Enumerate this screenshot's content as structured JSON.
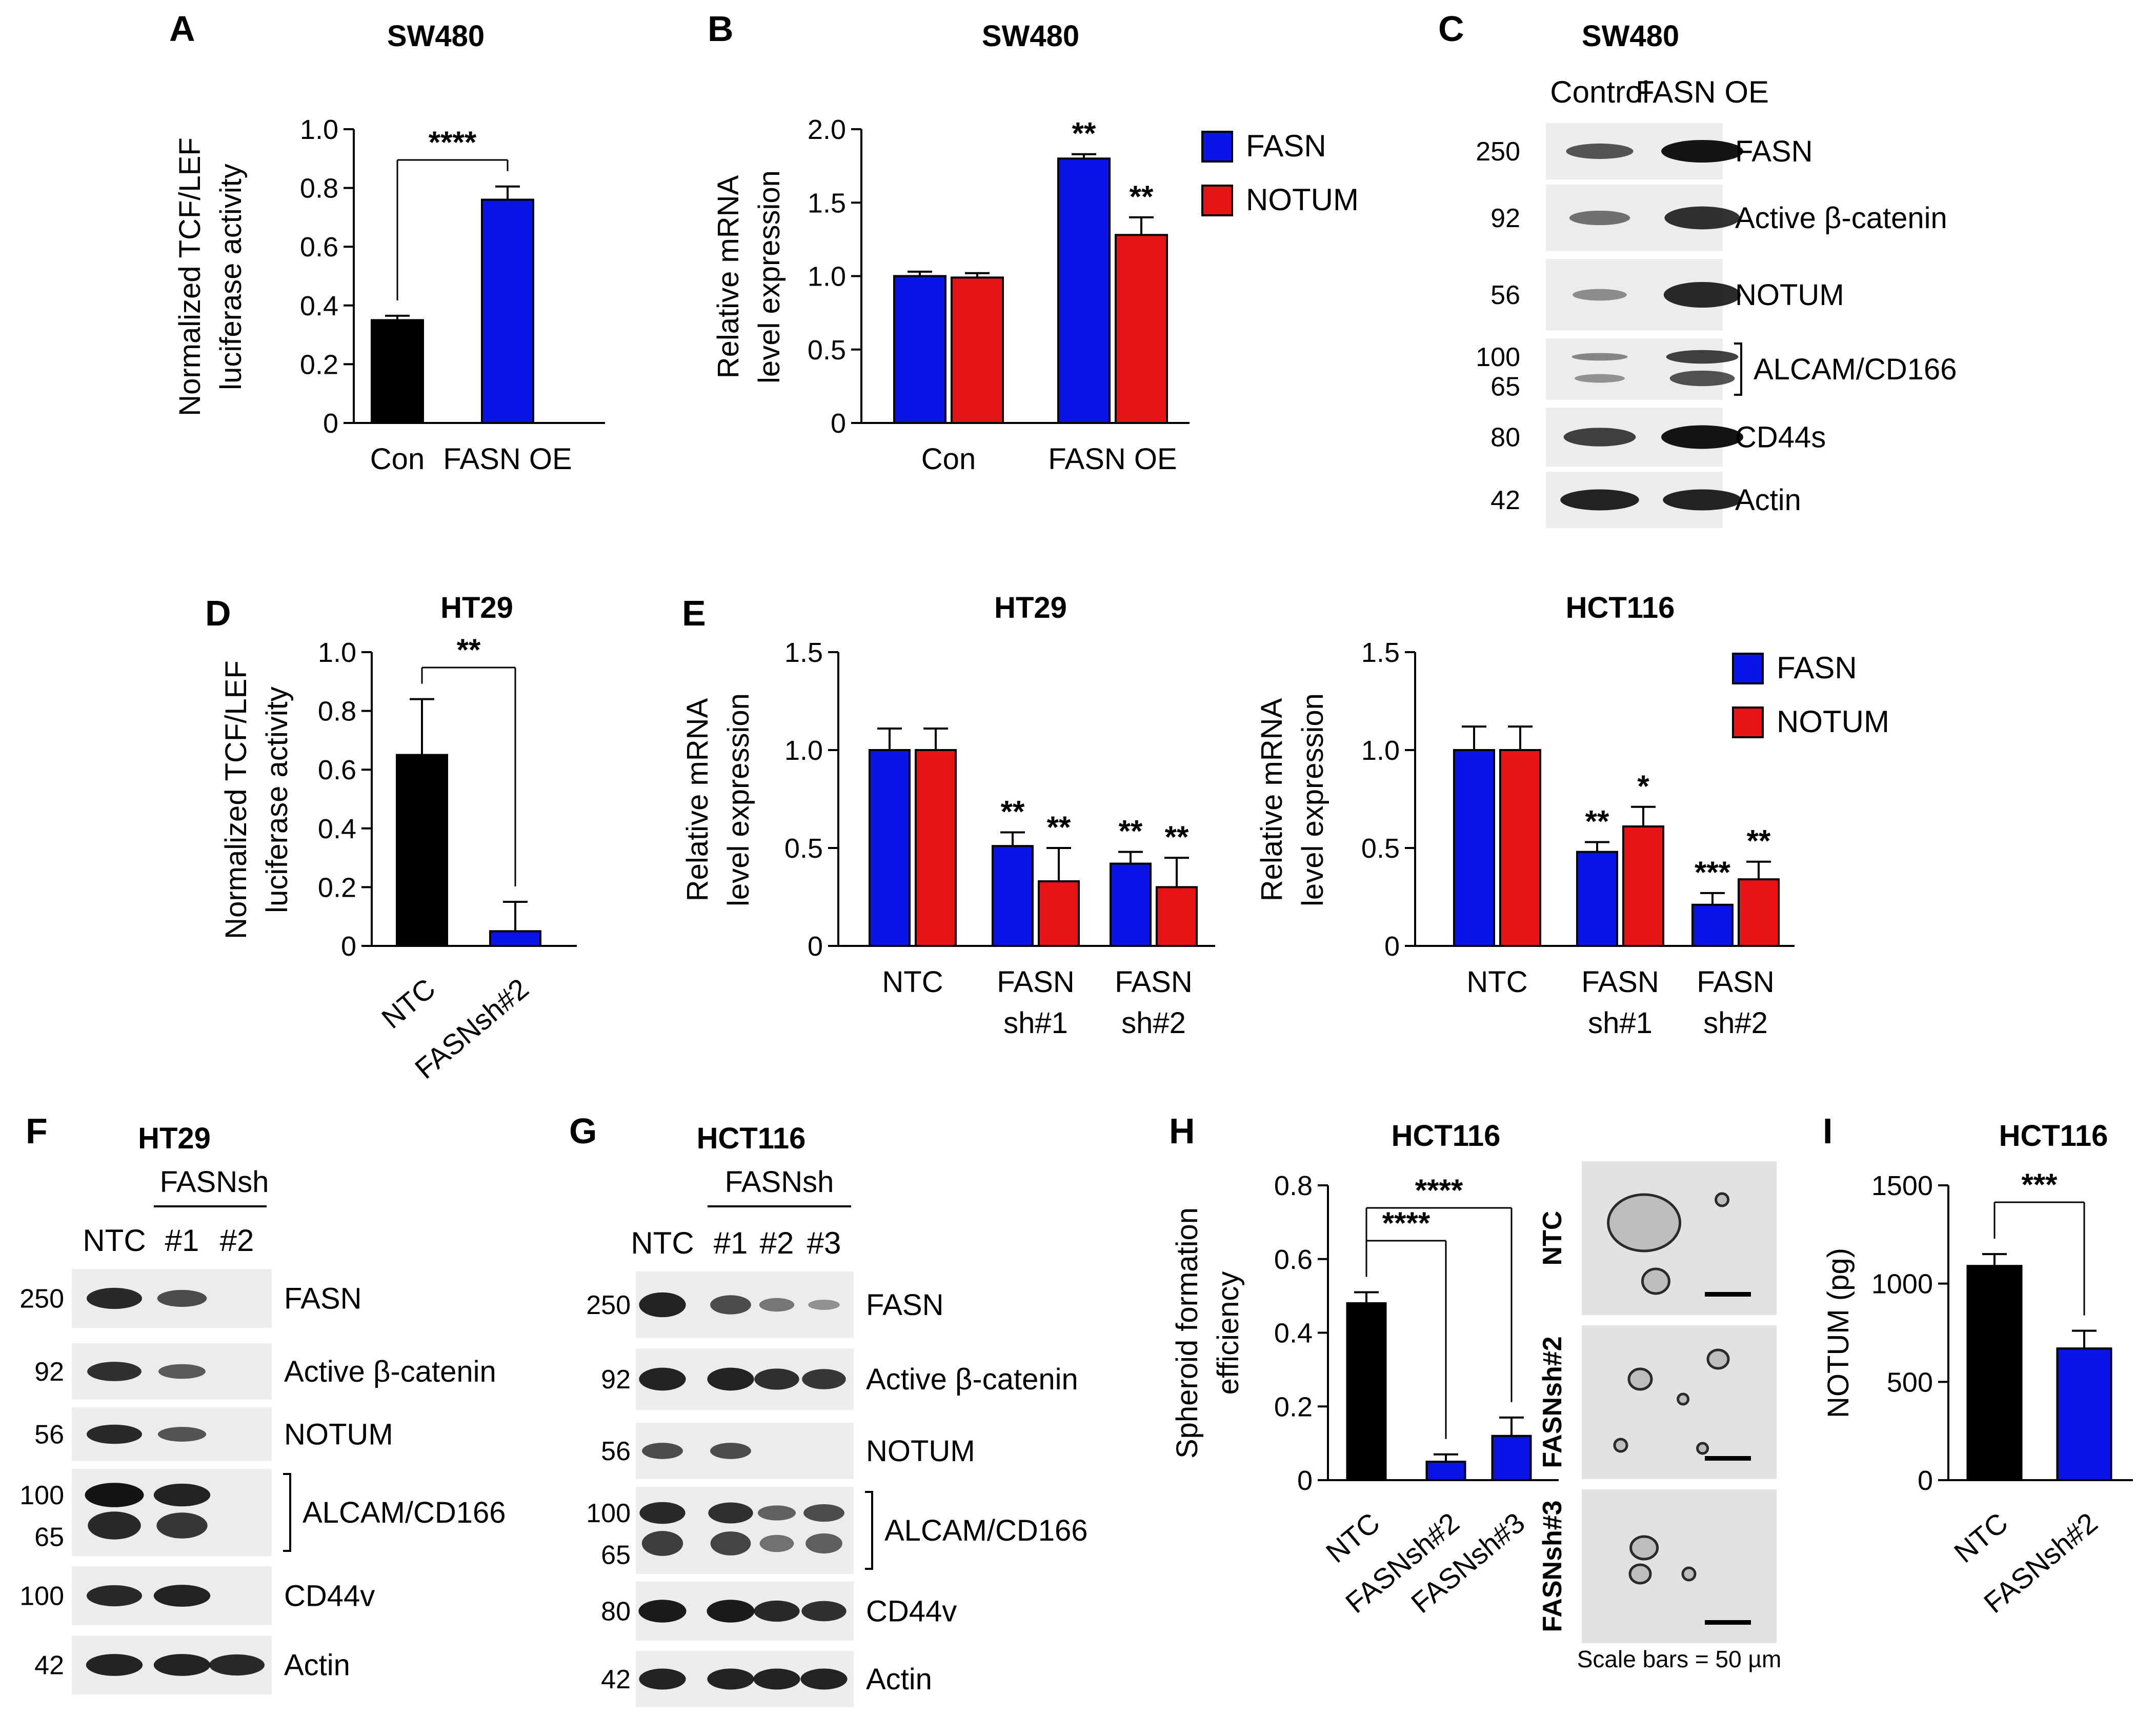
{
  "figure": {
    "colors": {
      "black": "#000000",
      "blue": "#0a14e6",
      "red": "#e61414",
      "band": "#141414",
      "blot_bg": "#ececec",
      "micro_bg": "#e2e2e2"
    },
    "legend": {
      "fasn": "FASN",
      "notum": "NOTUM"
    }
  },
  "chart_data": [
    {
      "panel": "A",
      "type": "bar",
      "title": "SW480",
      "ylabel": [
        "Normalized TCF/LEF",
        "luciferase activity"
      ],
      "ylim": [
        0,
        1.0
      ],
      "yticks": [
        "0",
        "0.2",
        "0.4",
        "0.6",
        "0.8",
        "1.0"
      ],
      "categories": [
        "Con",
        "FASN OE"
      ],
      "series": [
        {
          "name": "TCF/LEF",
          "values": [
            0.35,
            0.76
          ],
          "errors": [
            0.015,
            0.045
          ],
          "colors": [
            "#000000",
            "#0a14e6"
          ]
        }
      ],
      "significance": [
        {
          "label": "****",
          "from": 0,
          "to": 1
        }
      ]
    },
    {
      "panel": "B",
      "type": "bar",
      "title": "SW480",
      "ylabel": [
        "Relative mRNA",
        "level expression"
      ],
      "ylim": [
        0,
        2.0
      ],
      "yticks": [
        "0",
        "0.5",
        "1.0",
        "1.5",
        "2.0"
      ],
      "categories": [
        "Con",
        "FASN OE"
      ],
      "series": [
        {
          "name": "FASN",
          "values": [
            1.0,
            1.8
          ],
          "errors": [
            0.03,
            0.03
          ],
          "stars": [
            "",
            "**"
          ]
        },
        {
          "name": "NOTUM",
          "values": [
            0.99,
            1.28
          ],
          "errors": [
            0.03,
            0.12
          ],
          "stars": [
            "",
            "**"
          ]
        }
      ],
      "legend": [
        "FASN",
        "NOTUM"
      ]
    },
    {
      "panel": "D",
      "type": "bar",
      "title": "HT29",
      "ylabel": [
        "Normalized TCF/LEF",
        "luciferase activity"
      ],
      "ylim": [
        0,
        1.0
      ],
      "yticks": [
        "0",
        "0.2",
        "0.4",
        "0.6",
        "0.8",
        "1.0"
      ],
      "categories": [
        "NTC",
        "FASNsh#2"
      ],
      "series": [
        {
          "name": "TCF/LEF",
          "values": [
            0.65,
            0.05
          ],
          "errors": [
            0.19,
            0.1
          ],
          "colors": [
            "#000000",
            "#0a14e6"
          ]
        }
      ],
      "significance": [
        {
          "label": "**",
          "from": 0,
          "to": 1
        }
      ]
    },
    {
      "panel": "E",
      "type": "bar",
      "title": "HT29",
      "ylabel": [
        "Relative mRNA",
        "level expression"
      ],
      "ylim": [
        0,
        1.5
      ],
      "yticks": [
        "0",
        "0.5",
        "1.0",
        "1.5"
      ],
      "categories": [
        [
          "NTC"
        ],
        [
          "FASN",
          "sh#1"
        ],
        [
          "FASN",
          "sh#2"
        ]
      ],
      "series": [
        {
          "name": "FASN",
          "values": [
            1.0,
            0.51,
            0.42
          ],
          "errors": [
            0.11,
            0.07,
            0.06
          ],
          "stars": [
            "",
            "**",
            "**"
          ]
        },
        {
          "name": "NOTUM",
          "values": [
            1.0,
            0.33,
            0.3
          ],
          "errors": [
            0.11,
            0.17,
            0.15
          ],
          "stars": [
            "",
            "**",
            "**"
          ]
        }
      ]
    },
    {
      "panel": "E2",
      "type": "bar",
      "title": "HCT116",
      "ylabel": [
        "Relative mRNA",
        "level expression"
      ],
      "ylim": [
        0,
        1.5
      ],
      "yticks": [
        "0",
        "0.5",
        "1.0",
        "1.5"
      ],
      "categories": [
        [
          "NTC"
        ],
        [
          "FASN",
          "sh#1"
        ],
        [
          "FASN",
          "sh#2"
        ]
      ],
      "series": [
        {
          "name": "FASN",
          "values": [
            1.0,
            0.48,
            0.21
          ],
          "errors": [
            0.12,
            0.05,
            0.06
          ],
          "stars": [
            "",
            "**",
            "***"
          ]
        },
        {
          "name": "NOTUM",
          "values": [
            1.0,
            0.61,
            0.34
          ],
          "errors": [
            0.12,
            0.1,
            0.09
          ],
          "stars": [
            "",
            "*",
            "**"
          ]
        }
      ],
      "legend": [
        "FASN",
        "NOTUM"
      ]
    },
    {
      "panel": "H",
      "type": "bar",
      "title": "HCT116",
      "ylabel": [
        "Spheroid formation",
        "efficiency"
      ],
      "ylim": [
        0,
        0.8
      ],
      "yticks": [
        "0",
        "0.2",
        "0.4",
        "0.6",
        "0.8"
      ],
      "categories": [
        "NTC",
        "FASNsh#2",
        "FASNsh#3"
      ],
      "series": [
        {
          "name": "Spheroid",
          "values": [
            0.48,
            0.05,
            0.12
          ],
          "errors": [
            0.03,
            0.02,
            0.05
          ],
          "colors": [
            "#000000",
            "#0a14e6",
            "#0a14e6"
          ]
        }
      ],
      "significance": [
        {
          "label": "****",
          "from": 0,
          "to": 1
        },
        {
          "label": "****",
          "from": 0,
          "to": 2
        }
      ]
    },
    {
      "panel": "I",
      "type": "bar",
      "title": "HCT116",
      "ylabel": [
        "NOTUM (pg)"
      ],
      "ylim": [
        0,
        1500
      ],
      "yticks": [
        "0",
        "500",
        "1000",
        "1500"
      ],
      "categories": [
        "NTC",
        "FASNsh#2"
      ],
      "series": [
        {
          "name": "NOTUM",
          "values": [
            1090,
            670
          ],
          "errors": [
            60,
            90
          ],
          "colors": [
            "#000000",
            "#0a14e6"
          ]
        }
      ],
      "significance": [
        {
          "label": "***",
          "from": 0,
          "to": 1
        }
      ]
    }
  ],
  "blots": {
    "C": {
      "letter": "C",
      "title": "SW480",
      "lanes": [
        "Control",
        "FASN OE"
      ],
      "rows": [
        {
          "mw": [
            "250"
          ],
          "label": "FASN",
          "intensity": [
            0.55,
            1.0
          ]
        },
        {
          "mw": [
            "92"
          ],
          "label": "Active β-catenin",
          "intensity": [
            0.35,
            0.8
          ]
        },
        {
          "mw": [
            "56"
          ],
          "label": "NOTUM",
          "intensity": [
            0.15,
            0.85
          ]
        },
        {
          "mw": [
            "100",
            "65"
          ],
          "label": "ALCAM/CD166",
          "intensity": [
            0.2,
            0.7
          ]
        },
        {
          "mw": [
            "80"
          ],
          "label": "CD44s",
          "intensity": [
            0.7,
            1.0
          ]
        },
        {
          "mw": [
            "42"
          ],
          "label": "Actin",
          "intensity": [
            0.9,
            0.9
          ]
        }
      ]
    },
    "F": {
      "letter": "F",
      "title": "HT29",
      "group": "FASNsh",
      "lanes": [
        "NTC",
        "#1",
        "#2"
      ],
      "rows": [
        {
          "mw": [
            "250"
          ],
          "label": "FASN",
          "intensity": [
            0.85,
            0.6,
            0.03
          ]
        },
        {
          "mw": [
            "92"
          ],
          "label": "Active β-catenin",
          "intensity": [
            0.8,
            0.5,
            0.03
          ]
        },
        {
          "mw": [
            "56"
          ],
          "label": "NOTUM",
          "intensity": [
            0.85,
            0.55,
            0.03
          ]
        },
        {
          "mw": [
            "100",
            "65"
          ],
          "label": "ALCAM/CD166",
          "intensity": [
            1.0,
            0.9,
            0.03
          ]
        },
        {
          "mw": [
            "100"
          ],
          "label": "CD44v",
          "intensity": [
            0.85,
            0.9,
            0.03
          ]
        },
        {
          "mw": [
            "42"
          ],
          "label": "Actin",
          "intensity": [
            0.9,
            0.9,
            0.85
          ]
        }
      ]
    },
    "G": {
      "letter": "G",
      "title": "HCT116",
      "group": "FASNsh",
      "lanes": [
        "NTC",
        "#1",
        "#2",
        "#3"
      ],
      "rows": [
        {
          "mw": [
            "250"
          ],
          "label": "FASN",
          "intensity": [
            0.9,
            0.6,
            0.3,
            0.12
          ]
        },
        {
          "mw": [
            "92"
          ],
          "label": "Active β-catenin",
          "intensity": [
            0.9,
            0.9,
            0.8,
            0.75
          ]
        },
        {
          "mw": [
            "56"
          ],
          "label": "NOTUM",
          "intensity": [
            0.6,
            0.6,
            0.03,
            0.03
          ]
        },
        {
          "mw": [
            "100",
            "65"
          ],
          "label": "ALCAM/CD166",
          "intensity": [
            0.85,
            0.8,
            0.45,
            0.6
          ]
        },
        {
          "mw": [
            "80"
          ],
          "label": "CD44v",
          "intensity": [
            0.95,
            0.95,
            0.85,
            0.8
          ]
        },
        {
          "mw": [
            "42"
          ],
          "label": "Actin",
          "intensity": [
            0.9,
            0.9,
            0.9,
            0.9
          ]
        }
      ]
    }
  },
  "micrographs": {
    "labels": [
      "NTC",
      "FASNsh#2",
      "FASNsh#3"
    ],
    "scale_note": "Scale bars = 50 µm"
  }
}
